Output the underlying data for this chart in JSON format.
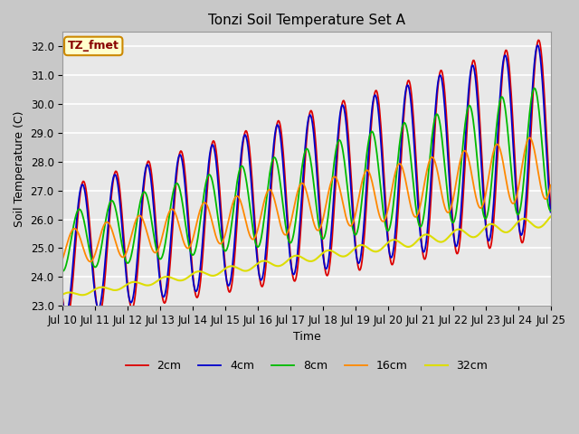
{
  "title": "Tonzi Soil Temperature Set A",
  "xlabel": "Time",
  "ylabel": "Soil Temperature (C)",
  "annotation": "TZ_fmet",
  "ylim": [
    23.0,
    32.5
  ],
  "yticks": [
    23.0,
    24.0,
    25.0,
    26.0,
    27.0,
    28.0,
    29.0,
    30.0,
    31.0,
    32.0
  ],
  "colors": {
    "2cm": "#dd0000",
    "4cm": "#0000cc",
    "8cm": "#00bb00",
    "16cm": "#ff8800",
    "32cm": "#dddd00"
  },
  "figsize": [
    6.4,
    4.8
  ],
  "dpi": 100,
  "title_fontsize": 11,
  "axis_label_fontsize": 9,
  "tick_fontsize": 8.5,
  "legend_fontsize": 9,
  "fig_bg": "#c8c8c8",
  "ax_bg": "#e8e8e8",
  "grid_color": "#ffffff",
  "linewidth_shallow": 1.3,
  "linewidth_deep": 1.5
}
